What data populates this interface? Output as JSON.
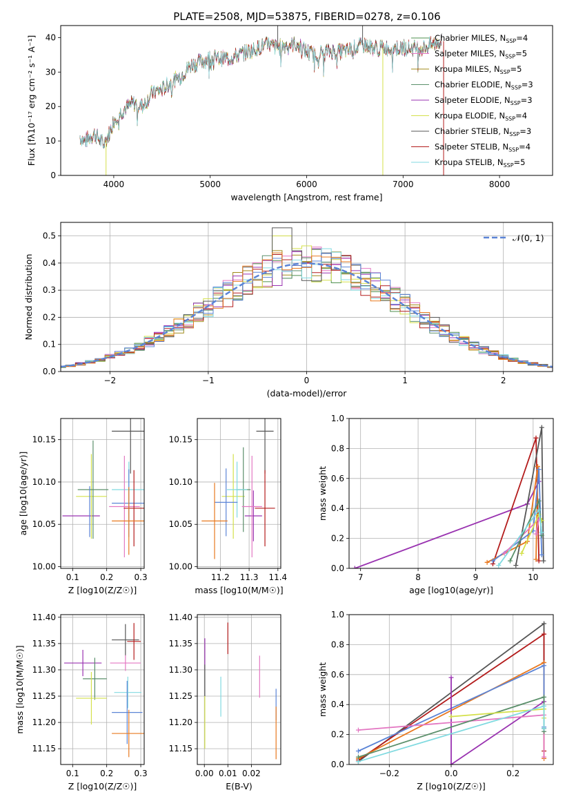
{
  "figure": {
    "title": "PLATE=2508, MJD=53875, FIBERID=0278, z=0.106"
  },
  "colors": {
    "Chabrier MILES": "#4e8f4e",
    "Salpeter MILES": "#e377c2",
    "Kroupa MILES": "#a08a1a",
    "Chabrier ELODIE": "#5a8f6a",
    "Salpeter ELODIE": "#9932b0",
    "Kroupa ELODIE": "#d4e04a",
    "Chabrier STELIB": "#555555",
    "Salpeter STELIB": "#b31b1b",
    "Kroupa STELIB": "#80dae0",
    "blue": "#5b84d6",
    "orange": "#e8781e",
    "gaussian": "#5b84d6",
    "grid": "#b0b0b0"
  },
  "chart_data": [
    {
      "id": "spectrum",
      "type": "line",
      "xlabel": "wavelength [Angstrom, rest frame]",
      "ylabel": "Flux [fλ10⁻¹⁷ erg cm⁻² s⁻¹ A⁻¹]",
      "xlim": [
        3450,
        8550
      ],
      "ylim": [
        0,
        43.5
      ],
      "xticks": [
        4000,
        5000,
        6000,
        7000,
        8000
      ],
      "yticks": [
        0,
        10,
        20,
        30,
        40
      ],
      "grid": false,
      "legend_position": "top-right",
      "legend": [
        "Chabrier MILES, N_SSP=4",
        "Salpeter MILES, N_SSP=5",
        "Kroupa MILES, N_SSP=5",
        "Chabrier ELODIE, N_SSP=3",
        "Salpeter ELODIE, N_SSP=3",
        "Kroupa ELODIE, N_SSP=4",
        "Chabrier STELIB, N_SSP=3",
        "Salpeter STELIB, N_SSP=4",
        "Kroupa STELIB, N_SSP=5"
      ],
      "legend_text": [
        {
          "pre": "Chabrier MILES, N",
          "sub": "SSP",
          "post": "=4"
        },
        {
          "pre": "Salpeter MILES, N",
          "sub": "SSP",
          "post": "=5"
        },
        {
          "pre": "Kroupa MILES, N",
          "sub": "SSP",
          "post": "=5"
        },
        {
          "pre": "Chabrier ELODIE, N",
          "sub": "SSP",
          "post": "=3"
        },
        {
          "pre": "Salpeter ELODIE, N",
          "sub": "SSP",
          "post": "=3"
        },
        {
          "pre": "Kroupa ELODIE, N",
          "sub": "SSP",
          "post": "=4"
        },
        {
          "pre": "Chabrier STELIB, N",
          "sub": "SSP",
          "post": "=3"
        },
        {
          "pre": "Salpeter STELIB, N",
          "sub": "SSP",
          "post": "=4"
        },
        {
          "pre": "Kroupa STELIB, N",
          "sub": "SSP",
          "post": "=5"
        }
      ],
      "continuum": [
        [
          3650,
          11
        ],
        [
          3700,
          10
        ],
        [
          3800,
          12
        ],
        [
          3900,
          9
        ],
        [
          3950,
          12
        ],
        [
          4000,
          16
        ],
        [
          4100,
          19
        ],
        [
          4200,
          21
        ],
        [
          4300,
          20
        ],
        [
          4400,
          24
        ],
        [
          4500,
          25
        ],
        [
          4600,
          27
        ],
        [
          4700,
          29
        ],
        [
          4800,
          32
        ],
        [
          4900,
          33
        ],
        [
          5000,
          34
        ],
        [
          5100,
          34
        ],
        [
          5200,
          34
        ],
        [
          5300,
          35
        ],
        [
          5400,
          36
        ],
        [
          5500,
          37
        ],
        [
          5600,
          38
        ],
        [
          5700,
          37
        ],
        [
          5800,
          38
        ],
        [
          5900,
          38
        ],
        [
          6000,
          36
        ],
        [
          6100,
          35
        ],
        [
          6200,
          36
        ],
        [
          6300,
          36
        ],
        [
          6400,
          36
        ],
        [
          6500,
          37
        ],
        [
          6600,
          38
        ],
        [
          6700,
          37
        ],
        [
          6800,
          37
        ],
        [
          6900,
          37
        ],
        [
          7000,
          37
        ],
        [
          7100,
          37
        ],
        [
          7200,
          37
        ],
        [
          7300,
          38
        ],
        [
          7400,
          39
        ]
      ]
    },
    {
      "id": "residuals",
      "type": "histogram",
      "xlabel": "(data-model)/error",
      "ylabel": "Normed distribution",
      "xlim": [
        -2.5,
        2.5
      ],
      "ylim": [
        0,
        0.55
      ],
      "xticks": [
        -2,
        -1,
        0,
        1,
        2
      ],
      "yticks": [
        0.0,
        0.1,
        0.2,
        0.3,
        0.4,
        0.5
      ],
      "grid": true,
      "legend_position": "top-right",
      "gaussian_label": "𝒩(0, 1)"
    },
    {
      "id": "age-vs-Z",
      "type": "scatter",
      "xlabel": "Z [log10(Z/Z☉)]",
      "ylabel": "age  [log10(age/yr)]",
      "xlim": [
        0.065,
        0.31
      ],
      "ylim": [
        9.998,
        10.175
      ],
      "xticks": [
        0.1,
        0.2,
        0.3
      ],
      "yticks": [
        10.0,
        10.05,
        10.1,
        10.15
      ],
      "points": [
        {
          "model": "Salpeter ELODIE",
          "x": 0.125,
          "y": 10.06,
          "xerr": 0.055,
          "yerr": 0
        },
        {
          "model": "Kroupa ELODIE",
          "x": 0.155,
          "y": 10.083,
          "xerr": 0.045,
          "yerr": 0.05
        },
        {
          "model": "Chabrier ELODIE",
          "x": 0.16,
          "y": 10.091,
          "xerr": 0.045,
          "yerr": 0.058
        },
        {
          "model": "blue",
          "x": 0.15,
          "y": 10.065,
          "xerr": 0,
          "yerr": 0.03
        },
        {
          "model": "Chabrier STELIB",
          "x": 0.27,
          "y": 10.16,
          "xerr": 0.055,
          "yerr": 0.05
        },
        {
          "model": "Kroupa STELIB",
          "x": 0.265,
          "y": 10.091,
          "xerr": 0.05,
          "yerr": 0.033
        },
        {
          "model": "blue",
          "x": 0.265,
          "y": 10.075,
          "xerr": 0.05,
          "yerr": 0.04
        },
        {
          "model": "Salpeter MILES",
          "x": 0.252,
          "y": 10.071,
          "xerr": 0.045,
          "yerr": 0.06
        },
        {
          "model": "Salpeter STELIB",
          "x": 0.28,
          "y": 10.069,
          "xerr": 0.03,
          "yerr": 0.045
        },
        {
          "model": "orange",
          "x": 0.265,
          "y": 10.054,
          "xerr": 0.05,
          "yerr": 0.04
        }
      ]
    },
    {
      "id": "age-vs-mass",
      "type": "scatter",
      "xlabel": "mass [log10(M/M☉)]",
      "ylabel": "",
      "xlim": [
        11.12,
        11.41
      ],
      "ylim": [
        9.998,
        10.175
      ],
      "xticks": [
        11.2,
        11.3,
        11.4
      ],
      "yticks": [
        10.0,
        10.05,
        10.1,
        10.15
      ],
      "points": [
        {
          "model": "Chabrier STELIB",
          "x": 11.355,
          "y": 10.16,
          "xerr": 0.03,
          "yerr": 0.05
        },
        {
          "model": "Kroupa ELODIE",
          "x": 11.245,
          "y": 10.083,
          "xerr": 0.04,
          "yerr": 0.05
        },
        {
          "model": "Chabrier ELODIE",
          "x": 11.28,
          "y": 10.091,
          "xerr": 0.025,
          "yerr": 0.05
        },
        {
          "model": "Kroupa STELIB",
          "x": 11.258,
          "y": 10.091,
          "xerr": 0.035,
          "yerr": 0.033
        },
        {
          "model": "blue",
          "x": 11.22,
          "y": 10.076,
          "xerr": 0.04,
          "yerr": 0.04
        },
        {
          "model": "orange",
          "x": 11.18,
          "y": 10.054,
          "xerr": 0.045,
          "yerr": 0.045
        },
        {
          "model": "Salpeter ELODIE",
          "x": 11.315,
          "y": 10.06,
          "xerr": 0.03,
          "yerr": 0.03
        },
        {
          "model": "Salpeter MILES",
          "x": 11.31,
          "y": 10.071,
          "xerr": 0.035,
          "yerr": 0.06
        },
        {
          "model": "Salpeter STELIB",
          "x": 11.355,
          "y": 10.069,
          "xerr": 0.035,
          "yerr": 0.045
        }
      ]
    },
    {
      "id": "massweight-vs-age",
      "type": "line",
      "xlabel": "age  [log10(age/yr)]",
      "ylabel": "mass weight",
      "xlim": [
        6.8,
        10.35
      ],
      "ylim": [
        0,
        1.0
      ],
      "xticks": [
        7,
        8,
        9,
        10
      ],
      "yticks": [
        0.0,
        0.2,
        0.4,
        0.6,
        0.8,
        1.0
      ],
      "series": [
        {
          "model": "Salpeter ELODIE",
          "points": [
            [
              6.9,
              0.0
            ],
            [
              9.9,
              0.43
            ],
            [
              10.1,
              0.58
            ]
          ]
        },
        {
          "model": "Salpeter STELIB",
          "points": [
            [
              9.3,
              0.03
            ],
            [
              10.05,
              0.87
            ],
            [
              10.1,
              0.05
            ]
          ]
        },
        {
          "model": "Chabrier STELIB",
          "points": [
            [
              9.7,
              0.02
            ],
            [
              10.15,
              0.94
            ],
            [
              10.18,
              0.05
            ]
          ]
        },
        {
          "model": "orange",
          "points": [
            [
              9.2,
              0.04
            ],
            [
              9.9,
              0.18
            ],
            [
              10.08,
              0.68
            ],
            [
              10.05,
              0.06
            ]
          ]
        },
        {
          "model": "blue",
          "points": [
            [
              9.3,
              0.05
            ],
            [
              10.0,
              0.25
            ],
            [
              10.1,
              0.66
            ],
            [
              10.15,
              0.09
            ]
          ]
        },
        {
          "model": "Salpeter MILES",
          "points": [
            [
              9.5,
              0.1
            ],
            [
              10.1,
              0.33
            ],
            [
              10.05,
              0.23
            ]
          ]
        },
        {
          "model": "Kroupa ELODIE",
          "points": [
            [
              9.8,
              0.1
            ],
            [
              10.1,
              0.36
            ],
            [
              10.15,
              0.32
            ]
          ]
        },
        {
          "model": "Chabrier ELODIE",
          "points": [
            [
              9.6,
              0.05
            ],
            [
              10.1,
              0.45
            ],
            [
              10.15,
              0.22
            ]
          ]
        },
        {
          "model": "Kroupa STELIB",
          "points": [
            [
              9.4,
              0.02
            ],
            [
              10.1,
              0.39
            ],
            [
              10.15,
              0.24
            ]
          ]
        }
      ]
    },
    {
      "id": "mass-vs-Z",
      "type": "scatter",
      "xlabel": "Z [log10(Z/Z☉)]",
      "ylabel": "mass [log10(M/M☉)]",
      "xlim": [
        0.065,
        0.31
      ],
      "ylim": [
        11.12,
        11.405
      ],
      "xticks": [
        0.1,
        0.2,
        0.3
      ],
      "yticks": [
        11.15,
        11.2,
        11.25,
        11.3,
        11.35,
        11.4
      ],
      "points": [
        {
          "model": "Salpeter ELODIE",
          "x": 0.13,
          "y": 11.313,
          "xerr": 0.055,
          "yerr": 0.025
        },
        {
          "model": "Chabrier ELODIE",
          "x": 0.165,
          "y": 11.283,
          "xerr": 0.035,
          "yerr": 0.04
        },
        {
          "model": "Kroupa ELODIE",
          "x": 0.155,
          "y": 11.246,
          "xerr": 0.045,
          "yerr": 0.05
        },
        {
          "model": "Chabrier STELIB",
          "x": 0.255,
          "y": 11.357,
          "xerr": 0.04,
          "yerr": 0.03
        },
        {
          "model": "Salpeter STELIB",
          "x": 0.28,
          "y": 11.354,
          "xerr": 0.02,
          "yerr": 0.035
        },
        {
          "model": "Salpeter MILES",
          "x": 0.255,
          "y": 11.313,
          "xerr": 0.045,
          "yerr": 0.015
        },
        {
          "model": "Kroupa STELIB",
          "x": 0.262,
          "y": 11.257,
          "xerr": 0.04,
          "yerr": 0.03
        },
        {
          "model": "blue",
          "x": 0.26,
          "y": 11.219,
          "xerr": 0.045,
          "yerr": 0.06
        },
        {
          "model": "orange",
          "x": 0.265,
          "y": 11.179,
          "xerr": 0.05,
          "yerr": 0.045
        }
      ]
    },
    {
      "id": "mass-vs-EBV",
      "type": "scatter",
      "xlabel": "E(B-V)",
      "ylabel": "",
      "xlim": [
        -0.003,
        0.0325
      ],
      "ylim": [
        11.12,
        11.405
      ],
      "xticks": [
        0.0,
        0.01,
        0.02
      ],
      "yticks": [
        11.15,
        11.2,
        11.25,
        11.3,
        11.35,
        11.4
      ],
      "points": [
        {
          "model": "Salpeter STELIB",
          "x": 0.01,
          "y": 11.36,
          "xerr": 0,
          "yerr": 0.03
        },
        {
          "model": "Salpeter MILES",
          "x": 0.0235,
          "y": 11.287,
          "xerr": 0,
          "yerr": 0.04
        },
        {
          "model": "Kroupa STELIB",
          "x": 0.007,
          "y": 11.249,
          "xerr": 0,
          "yerr": 0.038
        },
        {
          "model": "blue",
          "x": 0.0305,
          "y": 11.234,
          "xerr": 0,
          "yerr": 0.03
        },
        {
          "model": "orange",
          "x": 0.0305,
          "y": 11.18,
          "xerr": 0,
          "yerr": 0.05
        },
        {
          "model": "Salpeter ELODIE",
          "x": 0.0002,
          "y": 11.33,
          "xerr": 0,
          "yerr": 0.03
        },
        {
          "model": "Kroupa ELODIE",
          "x": 0.0002,
          "y": 11.2,
          "xerr": 0,
          "yerr": 0.05
        },
        {
          "model": "Chabrier STELIB",
          "x": 0.0002,
          "y": 11.28,
          "xerr": 0,
          "yerr": 0.03
        }
      ]
    },
    {
      "id": "massweight-vs-Z",
      "type": "line",
      "xlabel": "Z [log10(Z/Z☉)]",
      "ylabel": "mass weight",
      "xlim": [
        -0.33,
        0.33
      ],
      "ylim": [
        0,
        1.0
      ],
      "xticks": [
        -0.2,
        0.0,
        0.2
      ],
      "yticks": [
        0.0,
        0.2,
        0.4,
        0.6,
        0.8,
        1.0
      ],
      "series": [
        {
          "model": "Chabrier STELIB",
          "points": [
            [
              -0.3,
              0.02
            ],
            [
              0.3,
              0.94
            ],
            [
              0.3,
              0.24
            ]
          ]
        },
        {
          "model": "Salpeter STELIB",
          "points": [
            [
              -0.3,
              0.03
            ],
            [
              0.3,
              0.87
            ],
            [
              0.3,
              0.09
            ]
          ]
        },
        {
          "model": "orange",
          "points": [
            [
              -0.3,
              0.04
            ],
            [
              0.3,
              0.68
            ],
            [
              0.3,
              0.04
            ]
          ]
        },
        {
          "model": "blue",
          "points": [
            [
              -0.3,
              0.09
            ],
            [
              0.3,
              0.66
            ],
            [
              0.3,
              0.25
            ]
          ]
        },
        {
          "model": "Salpeter ELODIE",
          "points": [
            [
              0.0,
              0.58
            ],
            [
              0.0,
              0.0
            ],
            [
              0.3,
              0.42
            ]
          ]
        },
        {
          "model": "Salpeter MILES",
          "points": [
            [
              -0.3,
              0.23
            ],
            [
              0.3,
              0.33
            ],
            [
              0.3,
              0.05
            ]
          ]
        },
        {
          "model": "Chabrier ELODIE",
          "points": [
            [
              -0.3,
              0.05
            ],
            [
              0.3,
              0.45
            ],
            [
              0.3,
              0.22
            ]
          ]
        },
        {
          "model": "Kroupa ELODIE",
          "points": [
            [
              0.0,
              0.32
            ],
            [
              0.3,
              0.37
            ],
            [
              0.3,
              0.31
            ]
          ]
        },
        {
          "model": "Kroupa STELIB",
          "points": [
            [
              -0.3,
              0.02
            ],
            [
              0.3,
              0.39
            ],
            [
              0.3,
              0.24
            ]
          ]
        }
      ]
    }
  ]
}
